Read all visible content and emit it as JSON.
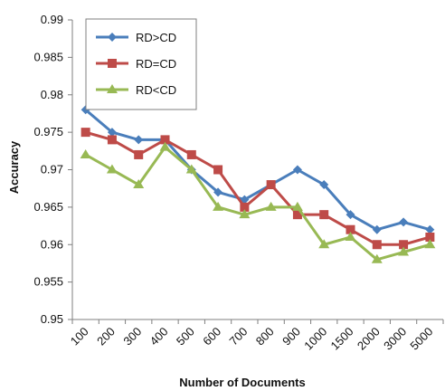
{
  "chart_data": {
    "type": "line",
    "title": "",
    "xlabel": "Number of Documents",
    "ylabel": "Accuracy",
    "categories": [
      "100",
      "200",
      "300",
      "400",
      "500",
      "600",
      "700",
      "800",
      "900",
      "1000",
      "1500",
      "2000",
      "3000",
      "5000"
    ],
    "ylim": [
      0.95,
      0.99
    ],
    "yticks": [
      "0.95",
      "0.955",
      "0.96",
      "0.965",
      "0.97",
      "0.975",
      "0.98",
      "0.985",
      "0.99"
    ],
    "grid": false,
    "legend_position": "top-left",
    "series": [
      {
        "name": "RD>CD",
        "color": "#4a7ebb",
        "marker": "diamond",
        "values": [
          0.978,
          0.975,
          0.974,
          0.974,
          0.97,
          0.967,
          0.966,
          0.968,
          0.97,
          0.968,
          0.964,
          0.962,
          0.963,
          0.962
        ]
      },
      {
        "name": "RD=CD",
        "color": "#be4b48",
        "marker": "square",
        "values": [
          0.975,
          0.974,
          0.972,
          0.974,
          0.972,
          0.97,
          0.965,
          0.968,
          0.964,
          0.964,
          0.962,
          0.96,
          0.96,
          0.961
        ]
      },
      {
        "name": "RD<CD",
        "color": "#98b954",
        "marker": "triangle",
        "values": [
          0.972,
          0.97,
          0.968,
          0.973,
          0.97,
          0.965,
          0.964,
          0.965,
          0.965,
          0.96,
          0.961,
          0.958,
          0.959,
          0.96
        ]
      }
    ]
  }
}
